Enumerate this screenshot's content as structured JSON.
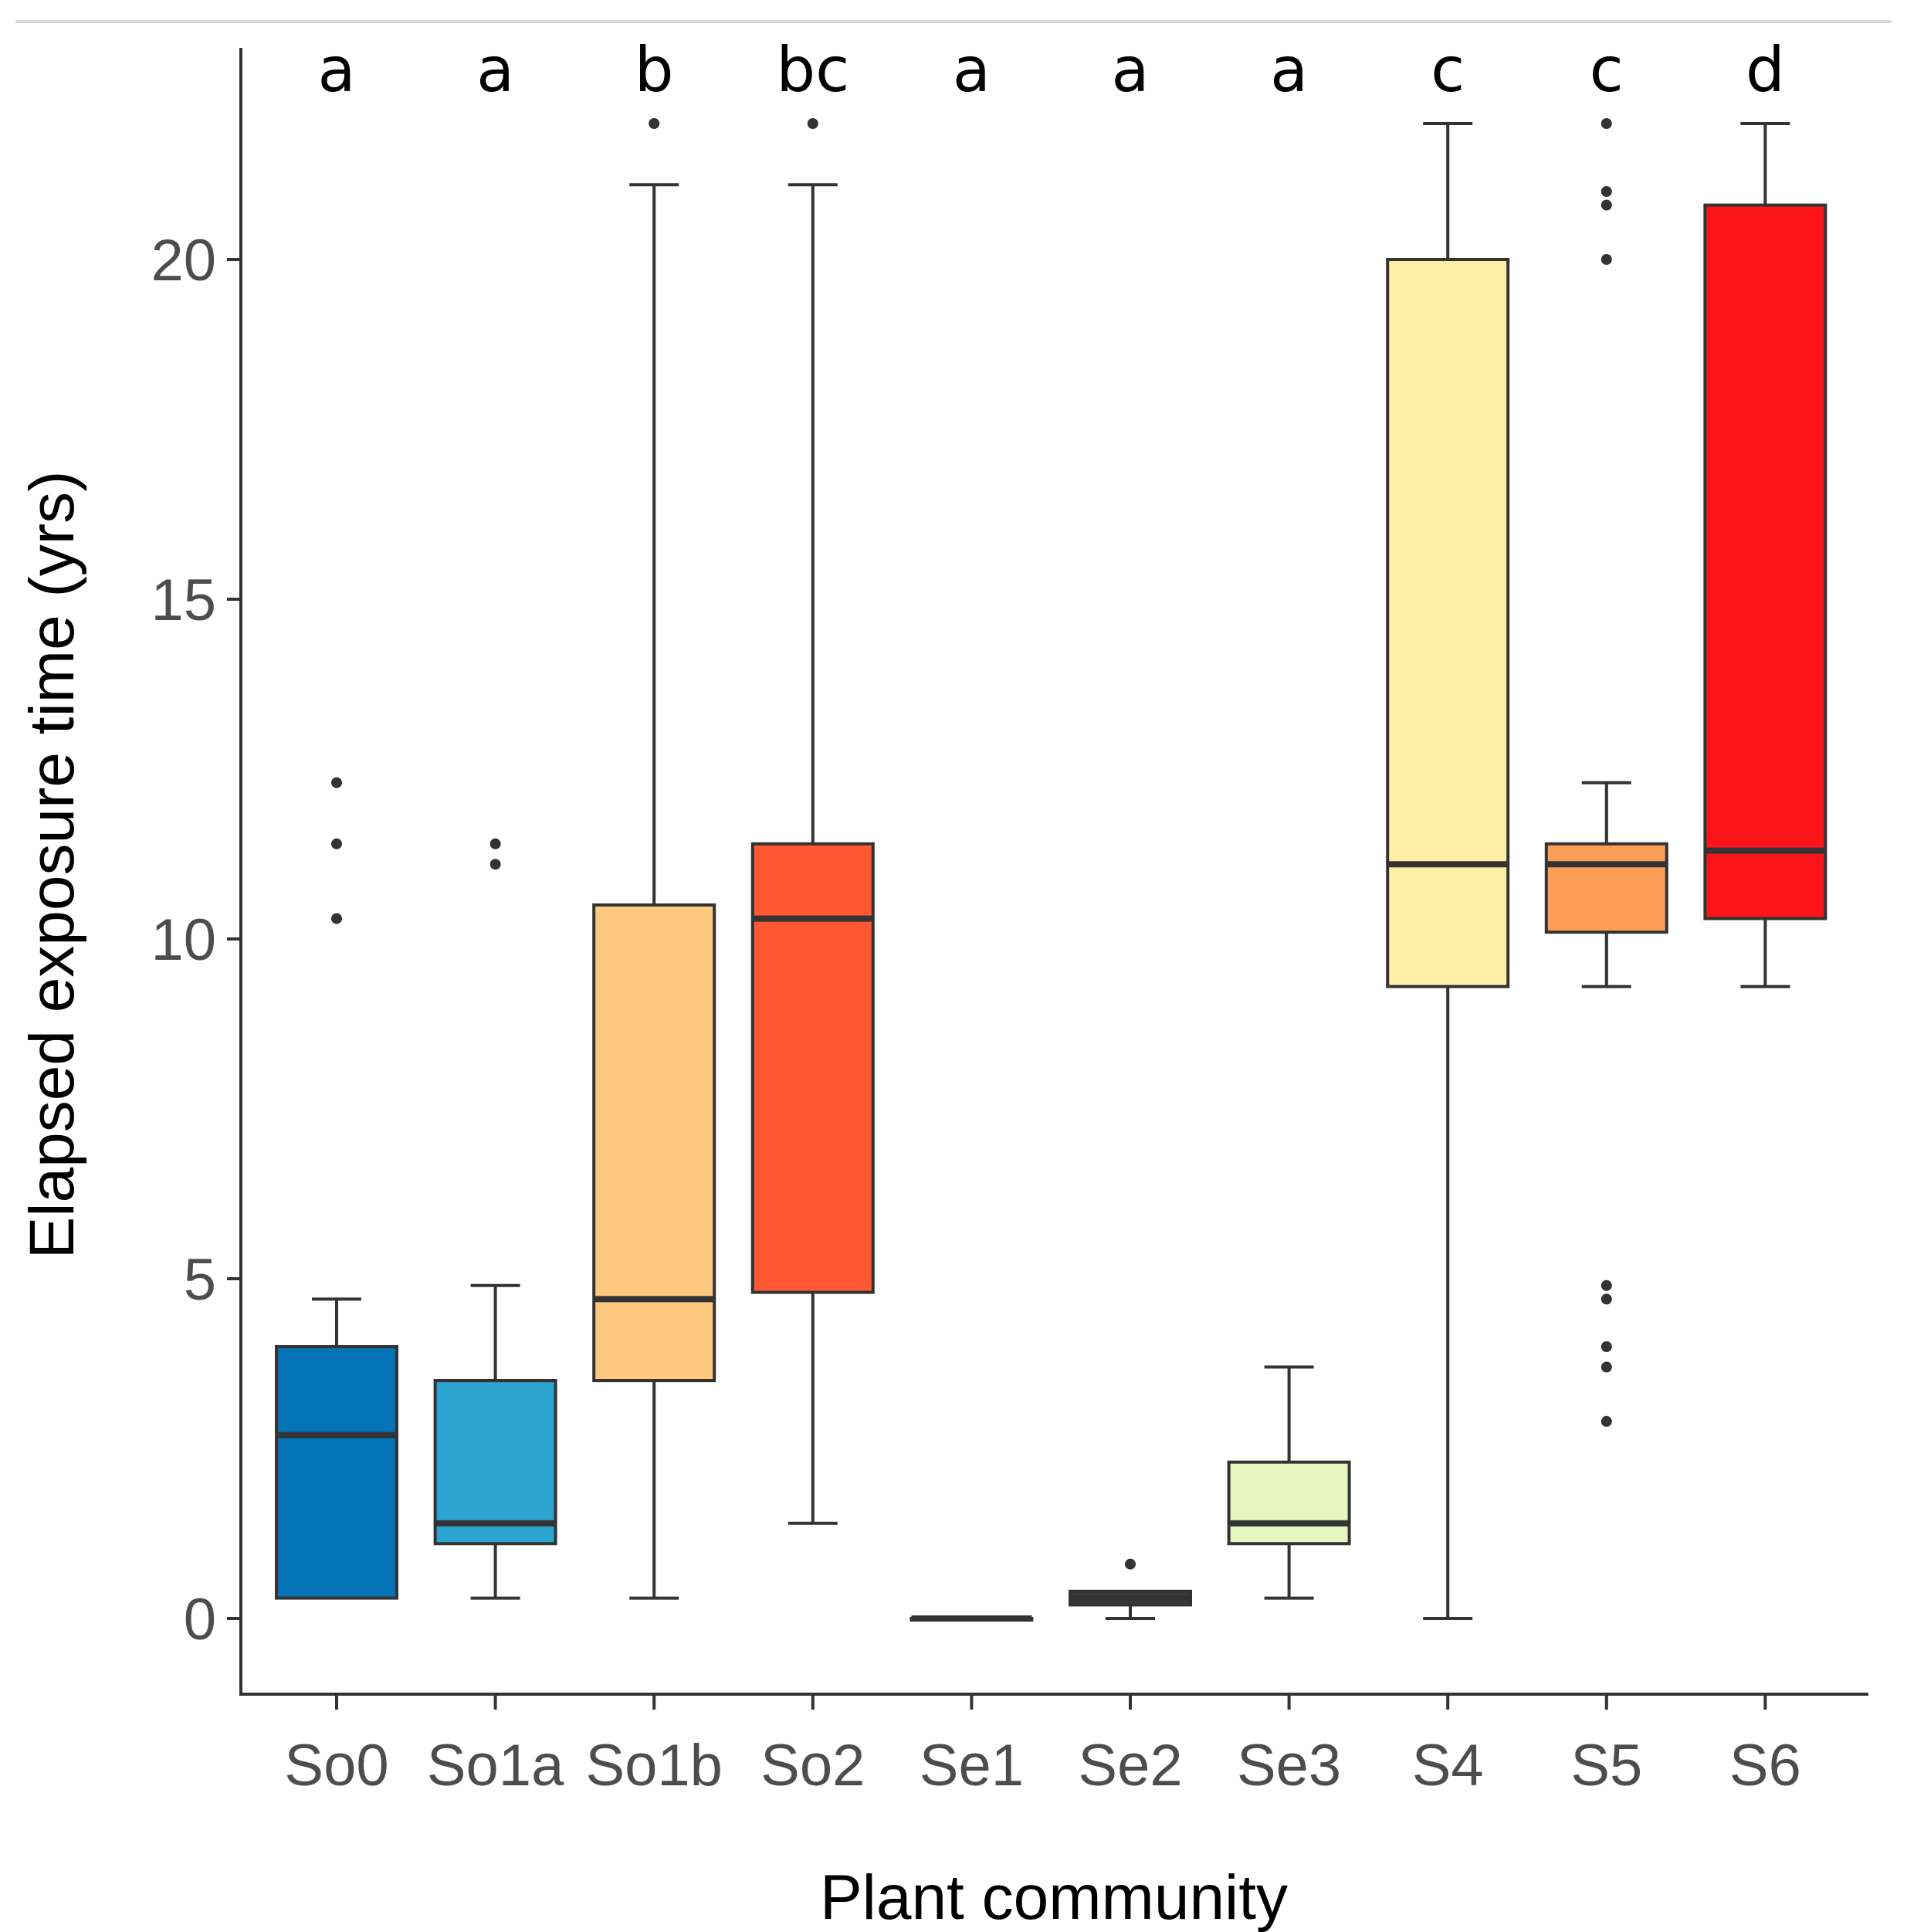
{
  "chart_data": {
    "type": "boxplot",
    "title": "",
    "xlabel": "Plant community",
    "ylabel": "Elapsed exposure time (yrs)",
    "ylim": [
      -1.1,
      23.1
    ],
    "yticks": [
      0,
      5,
      10,
      15,
      20
    ],
    "ytick_labels": [
      "0",
      "5",
      "10",
      "15",
      "20"
    ],
    "grid": false,
    "series": [
      {
        "name": "So0",
        "letter": "a",
        "color": "#0474B7",
        "min": 0.3,
        "q1": 0.3,
        "median": 2.7,
        "q3": 4.0,
        "max": 4.7,
        "outliers": [
          10.3,
          11.4,
          12.3
        ]
      },
      {
        "name": "So1a",
        "letter": "a",
        "color": "#2CA4D1",
        "min": 0.3,
        "q1": 1.1,
        "median": 1.4,
        "q3": 3.5,
        "max": 4.9,
        "outliers": [
          11.1,
          11.4
        ]
      },
      {
        "name": "So1b",
        "letter": "b",
        "color": "#FFC97F",
        "min": 0.3,
        "q1": 3.5,
        "median": 4.7,
        "q3": 10.5,
        "max": 21.1,
        "outliers": [
          22.0
        ]
      },
      {
        "name": "So2",
        "letter": "bc",
        "color": "#FF5833",
        "min": 1.4,
        "q1": 4.8,
        "median": 10.3,
        "q3": 11.4,
        "max": 21.1,
        "outliers": [
          22.0
        ]
      },
      {
        "name": "Se1",
        "letter": "a",
        "color": "#555555",
        "min": 0.0,
        "q1": 0.0,
        "median": 0.0,
        "q3": 0.0,
        "max": 0.0,
        "outliers": []
      },
      {
        "name": "Se2",
        "letter": "a",
        "color": "#3A3A3A",
        "min": 0.0,
        "q1": 0.2,
        "median": 0.3,
        "q3": 0.4,
        "max": 0.4,
        "outliers": [
          0.8
        ]
      },
      {
        "name": "Se3",
        "letter": "a",
        "color": "#E6F6C0",
        "min": 0.3,
        "q1": 1.1,
        "median": 1.4,
        "q3": 2.3,
        "max": 3.7,
        "outliers": []
      },
      {
        "name": "S4",
        "letter": "c",
        "color": "#FFEDA5",
        "min": 0.0,
        "q1": 9.3,
        "median": 11.1,
        "q3": 20.0,
        "max": 22.0,
        "outliers": []
      },
      {
        "name": "S5",
        "letter": "c",
        "color": "#FD9D55",
        "min": 9.3,
        "q1": 10.1,
        "median": 11.1,
        "q3": 11.4,
        "max": 12.3,
        "outliers": [
          2.9,
          3.7,
          4.0,
          4.7,
          4.9,
          20.0,
          20.8,
          21.0,
          22.0
        ]
      },
      {
        "name": "S6",
        "letter": "d",
        "color": "#FB1519",
        "min": 9.3,
        "q1": 10.3,
        "median": 11.3,
        "q3": 20.8,
        "max": 22.0,
        "outliers": []
      }
    ]
  }
}
